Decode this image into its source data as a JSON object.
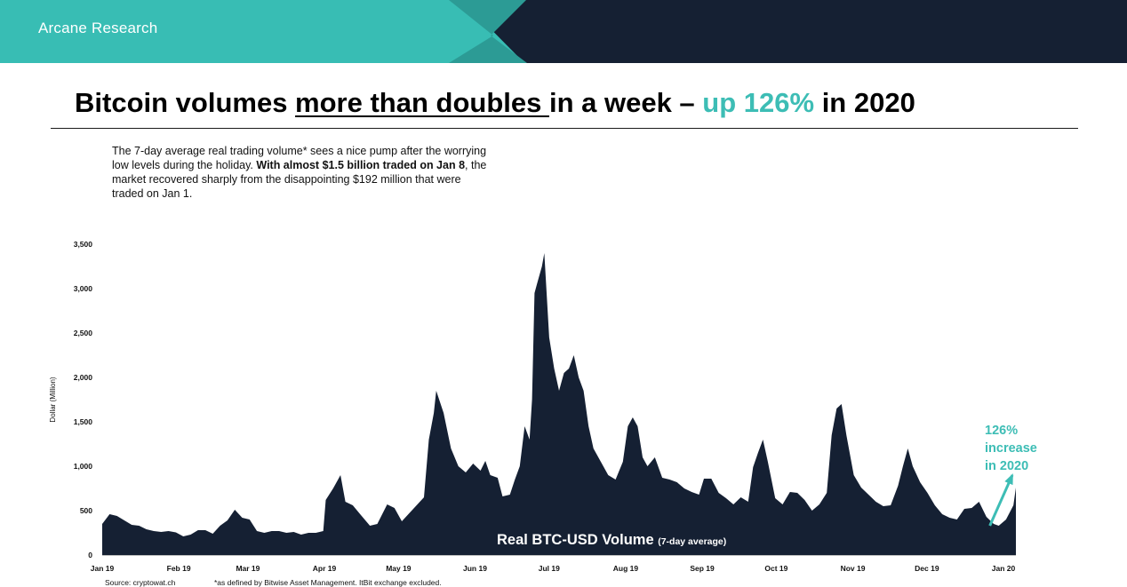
{
  "header": {
    "brand": "Arcane Research",
    "colors": {
      "teal": "#38bdb4",
      "teal_dark": "#2c9b95",
      "navy": "#152033"
    }
  },
  "title": {
    "part1": "Bitcoin volumes ",
    "part2": "more than doubles ",
    "part3": "in a week – ",
    "part4": "up 126%",
    "part5": " in 2020"
  },
  "description": {
    "text1": "The 7-day average real trading volume* sees a nice pump after the worrying low levels during the holiday. ",
    "bold": "With almost $1.5 billion traded on Jan 8",
    "text2": ", the market recovered sharply from the disappointing $192 million that were traded on Jan 1."
  },
  "footnotes": {
    "source": "Source: cryptowat.ch",
    "definition": "*as defined by Bitwise Asset Management. ItBit exchange excluded."
  },
  "chart_data": {
    "type": "area",
    "title": "Real BTC-USD Volume",
    "subtitle": "(7-day average)",
    "ylabel": "Dollar (Million)",
    "xlabel": "",
    "ylim": [
      0,
      3500
    ],
    "yticks": [
      0,
      500,
      1000,
      1500,
      2000,
      2500,
      3000,
      3500
    ],
    "ytick_labels": [
      "0",
      "500",
      "1,000",
      "1,500",
      "2,000",
      "2,500",
      "3,000",
      "3,500"
    ],
    "xticks": [
      "Jan 19",
      "Feb 19",
      "Mar 19",
      "Apr 19",
      "May 19",
      "Jun 19",
      "Jul 19",
      "Aug 19",
      "Sep 19",
      "Oct 19",
      "Nov 19",
      "Dec 19",
      "Jan 20"
    ],
    "xtick_dates": [
      "2019-01-01",
      "2019-02-01",
      "2019-03-01",
      "2019-04-01",
      "2019-05-01",
      "2019-06-01",
      "2019-07-01",
      "2019-08-01",
      "2019-09-01",
      "2019-10-01",
      "2019-11-01",
      "2019-12-01",
      "2020-01-01"
    ],
    "grid": false,
    "fill_color": "#152033",
    "accent_color": "#3dbdb5",
    "annotation": {
      "lines": [
        "126%",
        "increase",
        "in 2020"
      ],
      "from": [
        "2020-01-01",
        330
      ],
      "to": [
        "2020-01-08",
        900
      ]
    },
    "series": [
      {
        "points": [
          [
            "2019-01-01",
            350
          ],
          [
            "2019-01-04",
            460
          ],
          [
            "2019-01-07",
            440
          ],
          [
            "2019-01-10",
            390
          ],
          [
            "2019-01-13",
            340
          ],
          [
            "2019-01-16",
            330
          ],
          [
            "2019-01-19",
            290
          ],
          [
            "2019-01-22",
            270
          ],
          [
            "2019-01-25",
            260
          ],
          [
            "2019-01-28",
            270
          ],
          [
            "2019-01-31",
            255
          ],
          [
            "2019-02-03",
            210
          ],
          [
            "2019-02-06",
            230
          ],
          [
            "2019-02-09",
            280
          ],
          [
            "2019-02-12",
            280
          ],
          [
            "2019-02-15",
            240
          ],
          [
            "2019-02-18",
            330
          ],
          [
            "2019-02-21",
            390
          ],
          [
            "2019-02-24",
            510
          ],
          [
            "2019-02-27",
            420
          ],
          [
            "2019-03-02",
            400
          ],
          [
            "2019-03-05",
            270
          ],
          [
            "2019-03-08",
            250
          ],
          [
            "2019-03-11",
            270
          ],
          [
            "2019-03-14",
            270
          ],
          [
            "2019-03-17",
            250
          ],
          [
            "2019-03-20",
            260
          ],
          [
            "2019-03-23",
            230
          ],
          [
            "2019-03-26",
            250
          ],
          [
            "2019-03-29",
            250
          ],
          [
            "2019-04-01",
            270
          ],
          [
            "2019-04-02",
            620
          ],
          [
            "2019-04-05",
            750
          ],
          [
            "2019-04-08",
            900
          ],
          [
            "2019-04-10",
            600
          ],
          [
            "2019-04-13",
            560
          ],
          [
            "2019-04-16",
            460
          ],
          [
            "2019-04-20",
            330
          ],
          [
            "2019-04-23",
            350
          ],
          [
            "2019-04-27",
            570
          ],
          [
            "2019-04-30",
            530
          ],
          [
            "2019-05-03",
            380
          ],
          [
            "2019-05-06",
            470
          ],
          [
            "2019-05-09",
            560
          ],
          [
            "2019-05-12",
            650
          ],
          [
            "2019-05-14",
            1300
          ],
          [
            "2019-05-16",
            1600
          ],
          [
            "2019-05-17",
            1850
          ],
          [
            "2019-05-20",
            1600
          ],
          [
            "2019-05-23",
            1200
          ],
          [
            "2019-05-26",
            1000
          ],
          [
            "2019-05-29",
            930
          ],
          [
            "2019-06-01",
            1030
          ],
          [
            "2019-06-04",
            950
          ],
          [
            "2019-06-06",
            1060
          ],
          [
            "2019-06-08",
            900
          ],
          [
            "2019-06-11",
            870
          ],
          [
            "2019-06-13",
            660
          ],
          [
            "2019-06-16",
            680
          ],
          [
            "2019-06-18",
            850
          ],
          [
            "2019-06-20",
            1000
          ],
          [
            "2019-06-22",
            1450
          ],
          [
            "2019-06-24",
            1300
          ],
          [
            "2019-06-25",
            1750
          ],
          [
            "2019-06-26",
            2950
          ],
          [
            "2019-06-27",
            3050
          ],
          [
            "2019-06-29",
            3250
          ],
          [
            "2019-06-30",
            3400
          ],
          [
            "2019-07-02",
            2450
          ],
          [
            "2019-07-04",
            2100
          ],
          [
            "2019-07-06",
            1850
          ],
          [
            "2019-07-08",
            2050
          ],
          [
            "2019-07-10",
            2100
          ],
          [
            "2019-07-12",
            2250
          ],
          [
            "2019-07-14",
            2000
          ],
          [
            "2019-07-16",
            1850
          ],
          [
            "2019-07-18",
            1450
          ],
          [
            "2019-07-20",
            1200
          ],
          [
            "2019-07-23",
            1050
          ],
          [
            "2019-07-26",
            900
          ],
          [
            "2019-07-29",
            850
          ],
          [
            "2019-08-01",
            1050
          ],
          [
            "2019-08-03",
            1450
          ],
          [
            "2019-08-05",
            1550
          ],
          [
            "2019-08-07",
            1450
          ],
          [
            "2019-08-09",
            1100
          ],
          [
            "2019-08-11",
            1000
          ],
          [
            "2019-08-14",
            1100
          ],
          [
            "2019-08-17",
            870
          ],
          [
            "2019-08-20",
            850
          ],
          [
            "2019-08-23",
            820
          ],
          [
            "2019-08-26",
            750
          ],
          [
            "2019-08-29",
            710
          ],
          [
            "2019-09-01",
            680
          ],
          [
            "2019-09-03",
            860
          ],
          [
            "2019-09-06",
            860
          ],
          [
            "2019-09-09",
            700
          ],
          [
            "2019-09-12",
            640
          ],
          [
            "2019-09-15",
            570
          ],
          [
            "2019-09-18",
            650
          ],
          [
            "2019-09-21",
            600
          ],
          [
            "2019-09-23",
            990
          ],
          [
            "2019-09-25",
            1150
          ],
          [
            "2019-09-27",
            1300
          ],
          [
            "2019-09-29",
            1050
          ],
          [
            "2019-10-02",
            640
          ],
          [
            "2019-10-05",
            570
          ],
          [
            "2019-10-08",
            710
          ],
          [
            "2019-10-11",
            700
          ],
          [
            "2019-10-14",
            620
          ],
          [
            "2019-10-17",
            500
          ],
          [
            "2019-10-20",
            570
          ],
          [
            "2019-10-23",
            700
          ],
          [
            "2019-10-25",
            1350
          ],
          [
            "2019-10-27",
            1650
          ],
          [
            "2019-10-29",
            1700
          ],
          [
            "2019-10-31",
            1350
          ],
          [
            "2019-11-03",
            900
          ],
          [
            "2019-11-06",
            760
          ],
          [
            "2019-11-09",
            680
          ],
          [
            "2019-11-12",
            600
          ],
          [
            "2019-11-15",
            550
          ],
          [
            "2019-11-18",
            560
          ],
          [
            "2019-11-21",
            780
          ],
          [
            "2019-11-23",
            1000
          ],
          [
            "2019-11-25",
            1200
          ],
          [
            "2019-11-27",
            1000
          ],
          [
            "2019-11-30",
            820
          ],
          [
            "2019-12-03",
            700
          ],
          [
            "2019-12-06",
            560
          ],
          [
            "2019-12-09",
            460
          ],
          [
            "2019-12-12",
            420
          ],
          [
            "2019-12-15",
            400
          ],
          [
            "2019-12-18",
            520
          ],
          [
            "2019-12-21",
            530
          ],
          [
            "2019-12-24",
            600
          ],
          [
            "2019-12-27",
            430
          ],
          [
            "2019-12-30",
            350
          ],
          [
            "2020-01-01",
            330
          ],
          [
            "2020-01-04",
            400
          ],
          [
            "2020-01-07",
            560
          ],
          [
            "2020-01-08",
            760
          ]
        ]
      }
    ]
  }
}
